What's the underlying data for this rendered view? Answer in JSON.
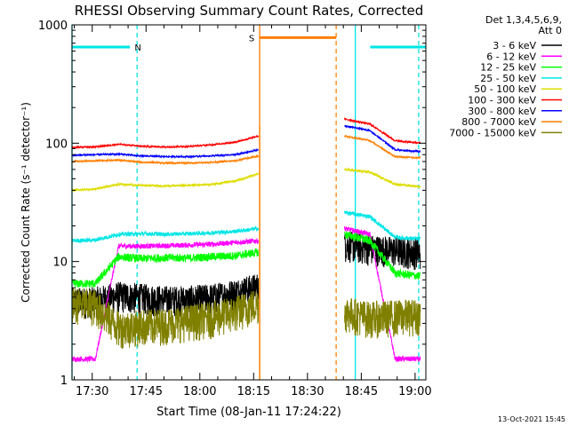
{
  "chart_data": {
    "type": "line",
    "title": "RHESSI Observing Summary Count Rates, Corrected",
    "xlabel": "Start Time (08-Jan-11 17:24:22)",
    "ylabel": "Corrected Count Rate (s⁻¹ detector⁻¹)",
    "y_scale": "log",
    "ylim": [
      1,
      1000
    ],
    "xlim": [
      "17:24:22",
      "19:03:00"
    ],
    "x_tick_labels": [
      "17:30",
      "17:45",
      "18:00",
      "18:15",
      "18:30",
      "18:45",
      "19:00"
    ],
    "y_tick_labels": [
      "1",
      "10",
      "100",
      "1000"
    ],
    "legend_title": [
      "Det 1,3,4,5,6,9,",
      "Att 0"
    ],
    "legend_position": "top-right",
    "footer_date": "13-Oct-2021 15:45",
    "flags": [
      {
        "label": "N",
        "color": "#00e5e5",
        "intervals": [
          [
            "17:24:22",
            "17:40:30"
          ],
          [
            "18:47:30",
            "19:03:00"
          ]
        ],
        "level": 650
      },
      {
        "label": "S",
        "color": "#ff7f00",
        "intervals": [
          [
            "18:16:40",
            "18:38:00"
          ]
        ],
        "level": 780
      }
    ],
    "vlines": [
      {
        "time": "17:24:22",
        "color": "#00e5e5",
        "style": "solid"
      },
      {
        "time": "17:42:30",
        "color": "#00e5e5",
        "style": "dashed"
      },
      {
        "time": "18:16:40",
        "color": "#ff7f00",
        "style": "solid"
      },
      {
        "time": "18:38:00",
        "color": "#ff7f00",
        "style": "dashed"
      },
      {
        "time": "18:43:20",
        "color": "#00e5e5",
        "style": "solid"
      },
      {
        "time": "19:01:00",
        "color": "#00e5e5",
        "style": "dashed"
      }
    ],
    "gap": [
      "18:16:40",
      "18:40:20"
    ],
    "series": [
      {
        "name": "3 - 6 keV",
        "color": "#000000",
        "seg1": [
          4.6,
          4.7,
          5.2,
          5.0,
          4.8,
          4.8,
          5.0,
          5.5,
          6.2
        ],
        "seg2": [
          14.0,
          13.0,
          12.5,
          12.0
        ],
        "noise": 0.3
      },
      {
        "name": "6 - 12 keV",
        "color": "#ff00ff",
        "seg1": [
          1.5,
          1.5,
          13.5,
          13.5,
          13.6,
          13.8,
          14.0,
          14.5,
          15.0
        ],
        "seg2": [
          19.0,
          17.0,
          1.5,
          1.5
        ],
        "noise": 0.05
      },
      {
        "name": "12 - 25 keV",
        "color": "#00ff00",
        "seg1": [
          6.5,
          6.5,
          11.0,
          10.6,
          10.8,
          10.7,
          11.0,
          11.2,
          12.0
        ],
        "seg2": [
          17.0,
          15.0,
          8.0,
          7.5
        ],
        "noise": 0.08
      },
      {
        "name": "25 - 50 keV",
        "color": "#00e5e5",
        "seg1": [
          15.0,
          15.2,
          17.0,
          17.2,
          17.0,
          17.2,
          17.5,
          18.0,
          19.0
        ],
        "seg2": [
          26.0,
          24.0,
          16.0,
          15.5
        ],
        "noise": 0.04
      },
      {
        "name": "50 - 100 keV",
        "color": "#dddd00",
        "seg1": [
          40.0,
          41.0,
          45.0,
          44.0,
          43.5,
          44.0,
          45.0,
          48.0,
          55.0
        ],
        "seg2": [
          60.0,
          57.0,
          45.0,
          43.0
        ],
        "noise": 0.02
      },
      {
        "name": "100 - 300 keV",
        "color": "#ff0000",
        "seg1": [
          92.0,
          93.0,
          98.0,
          94.0,
          93.0,
          94.0,
          97.0,
          102.0,
          115.0
        ],
        "seg2": [
          160.0,
          145.0,
          105.0,
          100.0
        ],
        "noise": 0.015
      },
      {
        "name": "300 - 800 keV",
        "color": "#0000ff",
        "seg1": [
          79.0,
          80.0,
          81.0,
          78.0,
          77.0,
          77.0,
          78.0,
          80.0,
          88.0
        ],
        "seg2": [
          140.0,
          128.0,
          88.0,
          85.0
        ],
        "noise": 0.015
      },
      {
        "name": "800 - 7000 keV",
        "color": "#ff7f00",
        "seg1": [
          70.0,
          71.0,
          72.0,
          69.0,
          68.0,
          68.0,
          69.0,
          71.0,
          78.0
        ],
        "seg2": [
          115.0,
          105.0,
          77.0,
          75.0
        ],
        "noise": 0.015
      },
      {
        "name": "7000 - 15000 keV",
        "color": "#808000",
        "seg1": [
          4.5,
          4.3,
          2.8,
          2.9,
          3.0,
          3.2,
          3.4,
          3.8,
          4.5
        ],
        "seg2": [
          3.8,
          3.4,
          3.5,
          3.6
        ],
        "noise": 0.35
      }
    ]
  }
}
